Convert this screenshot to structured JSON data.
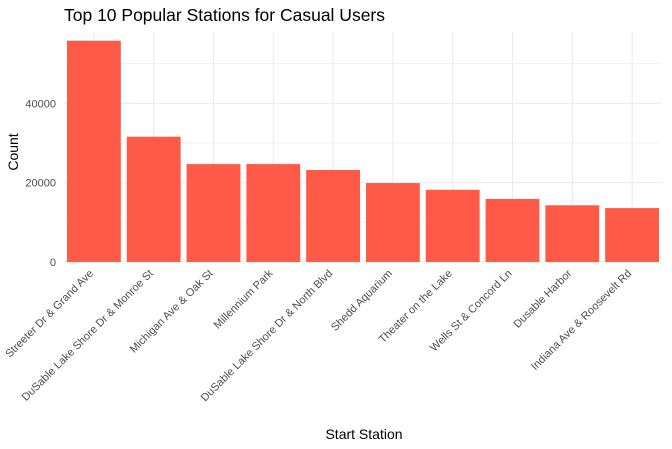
{
  "chart_data": {
    "type": "bar",
    "title": "Top 10 Popular Stations for Casual Users",
    "xlabel": "Start Station",
    "ylabel": "Count",
    "categories": [
      "Streeter Dr & Grand Ave",
      "DuSable Lake Shore Dr & Monroe St",
      "Michigan Ave & Oak St",
      "Millennium Park",
      "DuSable Lake Shore Dr & North Blvd",
      "Shedd Aquarium",
      "Theater on the Lake",
      "Wells St & Concord Ln",
      "Dusable Harbor",
      "Indiana Ave & Roosevelt Rd"
    ],
    "values": [
      55800,
      31600,
      24700,
      24700,
      23200,
      19900,
      18200,
      15900,
      14300,
      13600
    ],
    "ylim": [
      0,
      58000
    ],
    "yticks": [
      0,
      20000,
      40000
    ],
    "ytick_labels": [
      "0",
      "20000",
      "40000"
    ],
    "grid": true,
    "legend": "none",
    "bar_color": "#FF5A47",
    "grid_color": "#EBEBEB"
  }
}
